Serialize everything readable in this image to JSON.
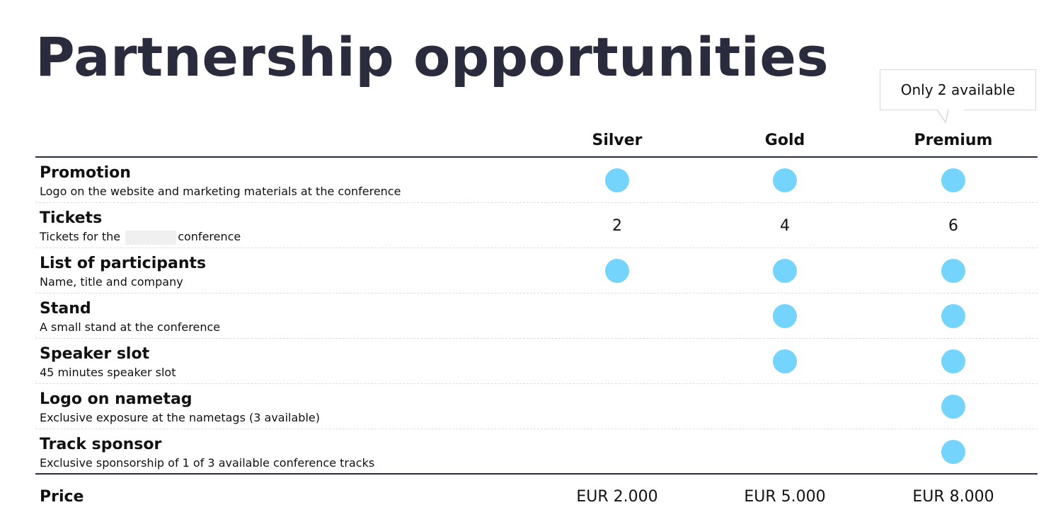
{
  "title": "Partnership opportunities",
  "callout": "Only 2 available",
  "tiers": [
    "Silver",
    "Gold",
    "Premium"
  ],
  "accent_color": "#74d4fc",
  "rows": [
    {
      "title": "Promotion",
      "subtitle": "Logo on the website and marketing materials at the conference",
      "values": [
        "dot",
        "dot",
        "dot"
      ]
    },
    {
      "title": "Tickets",
      "subtitle_before": "Tickets for the",
      "subtitle_after": "conference",
      "values": [
        "2",
        "4",
        "6"
      ]
    },
    {
      "title": "List of participants",
      "subtitle": "Name, title and company",
      "values": [
        "dot",
        "dot",
        "dot"
      ]
    },
    {
      "title": "Stand",
      "subtitle": "A small stand at the conference",
      "values": [
        "",
        "dot",
        "dot"
      ]
    },
    {
      "title": "Speaker slot",
      "subtitle": "45 minutes speaker slot",
      "values": [
        "",
        "dot",
        "dot"
      ]
    },
    {
      "title": "Logo on nametag",
      "subtitle": "Exclusive exposure at the nametags (3 available)",
      "values": [
        "",
        "",
        "dot"
      ]
    },
    {
      "title": "Track sponsor",
      "subtitle": "Exclusive sponsorship of 1 of 3 available conference tracks",
      "values": [
        "",
        "",
        "dot"
      ]
    }
  ],
  "price_label": "Price",
  "prices": [
    "EUR 2.000",
    "EUR 5.000",
    "EUR 8.000"
  ]
}
